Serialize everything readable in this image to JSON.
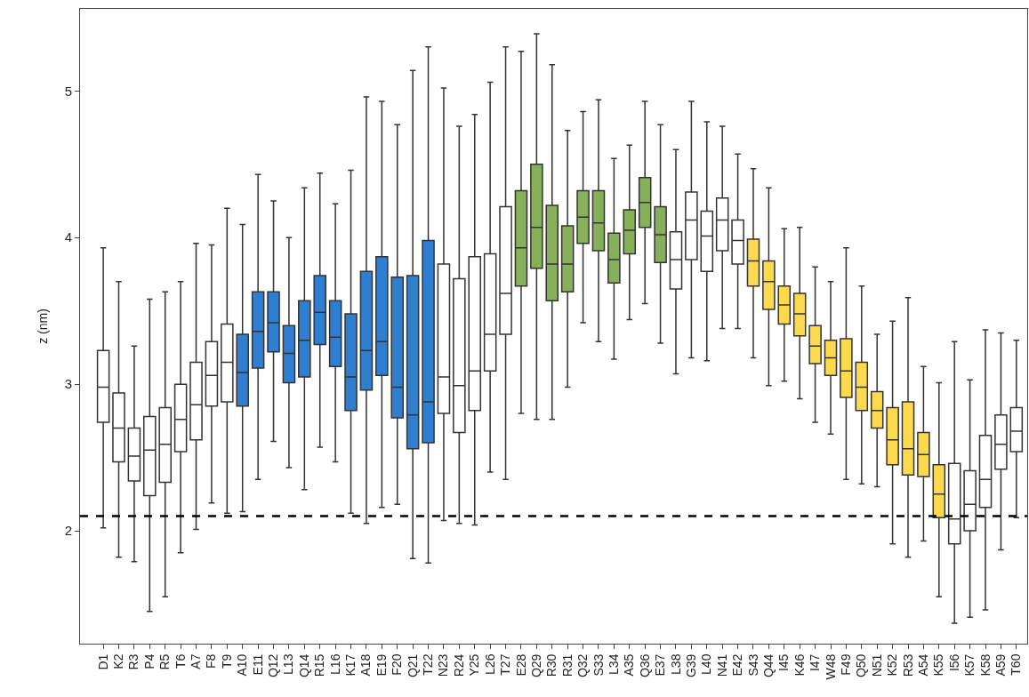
{
  "chart_data": {
    "type": "box",
    "ylabel": "z (nm)",
    "categories": [
      "D1",
      "K2",
      "R3",
      "P4",
      "R5",
      "T6",
      "A7",
      "F8",
      "T9",
      "A10",
      "E11",
      "Q12",
      "L13",
      "Q14",
      "R15",
      "L16",
      "K17",
      "A18",
      "E19",
      "F20",
      "Q21",
      "T22",
      "N23",
      "R24",
      "Y25",
      "L26",
      "T27",
      "E28",
      "Q29",
      "R30",
      "R31",
      "Q32",
      "S33",
      "L34",
      "A35",
      "Q36",
      "E37",
      "L38",
      "G39",
      "L40",
      "N41",
      "E42",
      "S43",
      "Q44",
      "I45",
      "K46",
      "I47",
      "W48",
      "F49",
      "Q50",
      "N51",
      "K52",
      "R53",
      "A54",
      "K55",
      "I56",
      "K57",
      "K58",
      "A59",
      "T60"
    ],
    "colors": [
      "#ffffff",
      "#ffffff",
      "#ffffff",
      "#ffffff",
      "#ffffff",
      "#ffffff",
      "#ffffff",
      "#ffffff",
      "#ffffff",
      "#2f7ecf",
      "#2f7ecf",
      "#2f7ecf",
      "#2f7ecf",
      "#2f7ecf",
      "#2f7ecf",
      "#2f7ecf",
      "#2f7ecf",
      "#2f7ecf",
      "#2f7ecf",
      "#2f7ecf",
      "#2f7ecf",
      "#2f7ecf",
      "#ffffff",
      "#ffffff",
      "#ffffff",
      "#ffffff",
      "#ffffff",
      "#86b05a",
      "#86b05a",
      "#86b05a",
      "#86b05a",
      "#86b05a",
      "#86b05a",
      "#86b05a",
      "#86b05a",
      "#86b05a",
      "#86b05a",
      "#ffffff",
      "#ffffff",
      "#ffffff",
      "#ffffff",
      "#ffffff",
      "#fcd94f",
      "#fcd94f",
      "#fcd94f",
      "#fcd94f",
      "#fcd94f",
      "#fcd94f",
      "#fcd94f",
      "#fcd94f",
      "#fcd94f",
      "#fcd94f",
      "#fcd94f",
      "#fcd94f",
      "#fcd94f",
      "#ffffff",
      "#ffffff",
      "#ffffff",
      "#ffffff",
      "#ffffff"
    ],
    "boxes": [
      {
        "low": 2.02,
        "q1": 2.74,
        "median": 2.98,
        "q3": 3.23,
        "high": 3.93
      },
      {
        "low": 1.82,
        "q1": 2.47,
        "median": 2.7,
        "q3": 2.94,
        "high": 3.7
      },
      {
        "low": 1.79,
        "q1": 2.34,
        "median": 2.51,
        "q3": 2.7,
        "high": 3.26
      },
      {
        "low": 1.45,
        "q1": 2.24,
        "median": 2.55,
        "q3": 2.78,
        "high": 3.58
      },
      {
        "low": 1.55,
        "q1": 2.33,
        "median": 2.59,
        "q3": 2.84,
        "high": 3.63
      },
      {
        "low": 1.85,
        "q1": 2.54,
        "median": 2.76,
        "q3": 3.0,
        "high": 3.7
      },
      {
        "low": 2.01,
        "q1": 2.62,
        "median": 2.86,
        "q3": 3.15,
        "high": 3.96
      },
      {
        "low": 2.19,
        "q1": 2.85,
        "median": 3.06,
        "q3": 3.29,
        "high": 3.95
      },
      {
        "low": 2.12,
        "q1": 2.88,
        "median": 3.15,
        "q3": 3.41,
        "high": 4.2
      },
      {
        "low": 2.13,
        "q1": 2.85,
        "median": 3.08,
        "q3": 3.34,
        "high": 4.09
      },
      {
        "low": 2.35,
        "q1": 3.11,
        "median": 3.36,
        "q3": 3.63,
        "high": 4.43
      },
      {
        "low": 2.61,
        "q1": 3.22,
        "median": 3.42,
        "q3": 3.63,
        "high": 4.25
      },
      {
        "low": 2.43,
        "q1": 3.01,
        "median": 3.21,
        "q3": 3.4,
        "high": 4.0
      },
      {
        "low": 2.28,
        "q1": 3.05,
        "median": 3.3,
        "q3": 3.57,
        "high": 4.34
      },
      {
        "low": 2.57,
        "q1": 3.27,
        "median": 3.49,
        "q3": 3.74,
        "high": 4.44
      },
      {
        "low": 2.47,
        "q1": 3.12,
        "median": 3.32,
        "q3": 3.57,
        "high": 4.23
      },
      {
        "low": 2.12,
        "q1": 2.82,
        "median": 3.05,
        "q3": 3.48,
        "high": 4.46
      },
      {
        "low": 2.05,
        "q1": 2.96,
        "median": 3.23,
        "q3": 3.77,
        "high": 4.96
      },
      {
        "low": 2.16,
        "q1": 3.06,
        "median": 3.29,
        "q3": 3.87,
        "high": 4.93
      },
      {
        "low": 2.18,
        "q1": 2.77,
        "median": 2.98,
        "q3": 3.73,
        "high": 4.77
      },
      {
        "low": 1.81,
        "q1": 2.56,
        "median": 2.79,
        "q3": 3.74,
        "high": 5.14
      },
      {
        "low": 1.78,
        "q1": 2.6,
        "median": 2.88,
        "q3": 3.98,
        "high": 5.3
      },
      {
        "low": 2.07,
        "q1": 2.8,
        "median": 3.05,
        "q3": 3.82,
        "high": 5.02
      },
      {
        "low": 2.05,
        "q1": 2.67,
        "median": 2.99,
        "q3": 3.72,
        "high": 4.76
      },
      {
        "low": 2.04,
        "q1": 2.82,
        "median": 3.09,
        "q3": 3.87,
        "high": 4.84
      },
      {
        "low": 2.4,
        "q1": 3.09,
        "median": 3.34,
        "q3": 3.89,
        "high": 5.06
      },
      {
        "low": 2.35,
        "q1": 3.34,
        "median": 3.62,
        "q3": 4.21,
        "high": 5.3
      },
      {
        "low": 2.8,
        "q1": 3.67,
        "median": 3.93,
        "q3": 4.32,
        "high": 5.27
      },
      {
        "low": 2.76,
        "q1": 3.79,
        "median": 4.07,
        "q3": 4.5,
        "high": 5.39
      },
      {
        "low": 2.76,
        "q1": 3.57,
        "median": 3.82,
        "q3": 4.22,
        "high": 5.18
      },
      {
        "low": 2.98,
        "q1": 3.63,
        "median": 3.82,
        "q3": 4.08,
        "high": 4.73
      },
      {
        "low": 3.42,
        "q1": 3.96,
        "median": 4.14,
        "q3": 4.32,
        "high": 4.86
      },
      {
        "low": 3.29,
        "q1": 3.91,
        "median": 4.1,
        "q3": 4.32,
        "high": 4.94
      },
      {
        "low": 3.17,
        "q1": 3.69,
        "median": 3.85,
        "q3": 4.03,
        "high": 4.54
      },
      {
        "low": 3.44,
        "q1": 3.89,
        "median": 4.05,
        "q3": 4.19,
        "high": 4.63
      },
      {
        "low": 3.55,
        "q1": 4.07,
        "median": 4.24,
        "q3": 4.41,
        "high": 4.93
      },
      {
        "low": 3.28,
        "q1": 3.83,
        "median": 4.02,
        "q3": 4.21,
        "high": 4.77
      },
      {
        "low": 3.07,
        "q1": 3.65,
        "median": 3.85,
        "q3": 4.04,
        "high": 4.6
      },
      {
        "low": 3.18,
        "q1": 3.85,
        "median": 4.12,
        "q3": 4.31,
        "high": 4.93
      },
      {
        "low": 3.16,
        "q1": 3.77,
        "median": 4.01,
        "q3": 4.18,
        "high": 4.79
      },
      {
        "low": 3.38,
        "q1": 3.91,
        "median": 4.12,
        "q3": 4.27,
        "high": 4.76
      },
      {
        "low": 3.38,
        "q1": 3.82,
        "median": 3.98,
        "q3": 4.12,
        "high": 4.57
      },
      {
        "low": 3.18,
        "q1": 3.67,
        "median": 3.84,
        "q3": 3.99,
        "high": 4.47
      },
      {
        "low": 2.99,
        "q1": 3.51,
        "median": 3.7,
        "q3": 3.84,
        "high": 4.34
      },
      {
        "low": 3.02,
        "q1": 3.41,
        "median": 3.54,
        "q3": 3.67,
        "high": 4.06
      },
      {
        "low": 2.9,
        "q1": 3.33,
        "median": 3.48,
        "q3": 3.62,
        "high": 4.07
      },
      {
        "low": 2.74,
        "q1": 3.14,
        "median": 3.26,
        "q3": 3.4,
        "high": 3.8
      },
      {
        "low": 2.66,
        "q1": 3.06,
        "median": 3.18,
        "q3": 3.3,
        "high": 3.7
      },
      {
        "low": 2.35,
        "q1": 2.91,
        "median": 3.09,
        "q3": 3.31,
        "high": 3.93
      },
      {
        "low": 2.32,
        "q1": 2.82,
        "median": 2.98,
        "q3": 3.15,
        "high": 3.67
      },
      {
        "low": 2.3,
        "q1": 2.7,
        "median": 2.82,
        "q3": 2.95,
        "high": 3.34
      },
      {
        "low": 1.91,
        "q1": 2.45,
        "median": 2.62,
        "q3": 2.84,
        "high": 3.43
      },
      {
        "low": 1.82,
        "q1": 2.38,
        "median": 2.56,
        "q3": 2.88,
        "high": 3.59
      },
      {
        "low": 1.93,
        "q1": 2.37,
        "median": 2.52,
        "q3": 2.67,
        "high": 3.12
      },
      {
        "low": 1.55,
        "q1": 2.09,
        "median": 2.25,
        "q3": 2.45,
        "high": 3.01
      },
      {
        "low": 1.37,
        "q1": 1.91,
        "median": 2.08,
        "q3": 2.46,
        "high": 3.29
      },
      {
        "low": 1.41,
        "q1": 2.0,
        "median": 2.18,
        "q3": 2.41,
        "high": 3.03
      },
      {
        "low": 1.46,
        "q1": 2.16,
        "median": 2.35,
        "q3": 2.65,
        "high": 3.37
      },
      {
        "low": 1.87,
        "q1": 2.42,
        "median": 2.59,
        "q3": 2.79,
        "high": 3.35
      },
      {
        "low": 2.09,
        "q1": 2.54,
        "median": 2.68,
        "q3": 2.84,
        "high": 3.3
      }
    ],
    "ylim": [
      1.23,
      5.56
    ],
    "yticks": [
      2,
      3,
      4,
      5
    ],
    "ref_lines": [
      {
        "axis": "y",
        "value": 2.1,
        "color": "#000000",
        "line_style": "dashed"
      }
    ]
  }
}
